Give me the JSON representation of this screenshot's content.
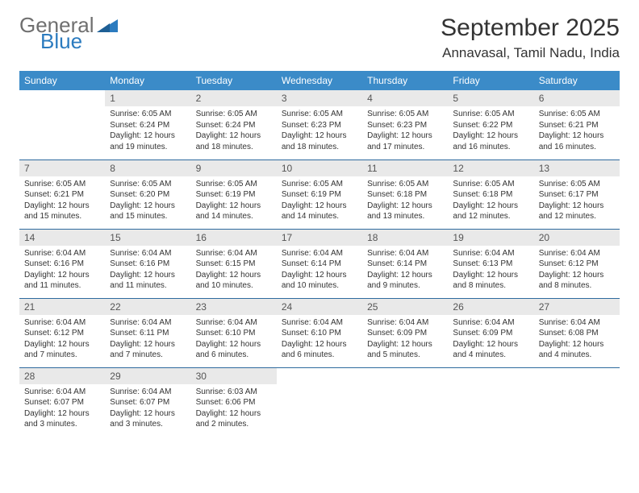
{
  "logo": {
    "text1": "General",
    "text2": "Blue",
    "color_general": "#6f6f6f",
    "color_blue": "#2b7bbf"
  },
  "title": "September 2025",
  "location": "Annavasal, Tamil Nadu, India",
  "colors": {
    "header_bg": "#3b8bc8",
    "header_text": "#ffffff",
    "daynum_bg": "#e9e9e9",
    "row_border": "#2e6a9e",
    "body_text": "#333333"
  },
  "day_headers": [
    "Sunday",
    "Monday",
    "Tuesday",
    "Wednesday",
    "Thursday",
    "Friday",
    "Saturday"
  ],
  "weeks": [
    [
      {
        "n": "",
        "sr": "",
        "ss": "",
        "dl": ""
      },
      {
        "n": "1",
        "sr": "Sunrise: 6:05 AM",
        "ss": "Sunset: 6:24 PM",
        "dl": "Daylight: 12 hours and 19 minutes."
      },
      {
        "n": "2",
        "sr": "Sunrise: 6:05 AM",
        "ss": "Sunset: 6:24 PM",
        "dl": "Daylight: 12 hours and 18 minutes."
      },
      {
        "n": "3",
        "sr": "Sunrise: 6:05 AM",
        "ss": "Sunset: 6:23 PM",
        "dl": "Daylight: 12 hours and 18 minutes."
      },
      {
        "n": "4",
        "sr": "Sunrise: 6:05 AM",
        "ss": "Sunset: 6:23 PM",
        "dl": "Daylight: 12 hours and 17 minutes."
      },
      {
        "n": "5",
        "sr": "Sunrise: 6:05 AM",
        "ss": "Sunset: 6:22 PM",
        "dl": "Daylight: 12 hours and 16 minutes."
      },
      {
        "n": "6",
        "sr": "Sunrise: 6:05 AM",
        "ss": "Sunset: 6:21 PM",
        "dl": "Daylight: 12 hours and 16 minutes."
      }
    ],
    [
      {
        "n": "7",
        "sr": "Sunrise: 6:05 AM",
        "ss": "Sunset: 6:21 PM",
        "dl": "Daylight: 12 hours and 15 minutes."
      },
      {
        "n": "8",
        "sr": "Sunrise: 6:05 AM",
        "ss": "Sunset: 6:20 PM",
        "dl": "Daylight: 12 hours and 15 minutes."
      },
      {
        "n": "9",
        "sr": "Sunrise: 6:05 AM",
        "ss": "Sunset: 6:19 PM",
        "dl": "Daylight: 12 hours and 14 minutes."
      },
      {
        "n": "10",
        "sr": "Sunrise: 6:05 AM",
        "ss": "Sunset: 6:19 PM",
        "dl": "Daylight: 12 hours and 14 minutes."
      },
      {
        "n": "11",
        "sr": "Sunrise: 6:05 AM",
        "ss": "Sunset: 6:18 PM",
        "dl": "Daylight: 12 hours and 13 minutes."
      },
      {
        "n": "12",
        "sr": "Sunrise: 6:05 AM",
        "ss": "Sunset: 6:18 PM",
        "dl": "Daylight: 12 hours and 12 minutes."
      },
      {
        "n": "13",
        "sr": "Sunrise: 6:05 AM",
        "ss": "Sunset: 6:17 PM",
        "dl": "Daylight: 12 hours and 12 minutes."
      }
    ],
    [
      {
        "n": "14",
        "sr": "Sunrise: 6:04 AM",
        "ss": "Sunset: 6:16 PM",
        "dl": "Daylight: 12 hours and 11 minutes."
      },
      {
        "n": "15",
        "sr": "Sunrise: 6:04 AM",
        "ss": "Sunset: 6:16 PM",
        "dl": "Daylight: 12 hours and 11 minutes."
      },
      {
        "n": "16",
        "sr": "Sunrise: 6:04 AM",
        "ss": "Sunset: 6:15 PM",
        "dl": "Daylight: 12 hours and 10 minutes."
      },
      {
        "n": "17",
        "sr": "Sunrise: 6:04 AM",
        "ss": "Sunset: 6:14 PM",
        "dl": "Daylight: 12 hours and 10 minutes."
      },
      {
        "n": "18",
        "sr": "Sunrise: 6:04 AM",
        "ss": "Sunset: 6:14 PM",
        "dl": "Daylight: 12 hours and 9 minutes."
      },
      {
        "n": "19",
        "sr": "Sunrise: 6:04 AM",
        "ss": "Sunset: 6:13 PM",
        "dl": "Daylight: 12 hours and 8 minutes."
      },
      {
        "n": "20",
        "sr": "Sunrise: 6:04 AM",
        "ss": "Sunset: 6:12 PM",
        "dl": "Daylight: 12 hours and 8 minutes."
      }
    ],
    [
      {
        "n": "21",
        "sr": "Sunrise: 6:04 AM",
        "ss": "Sunset: 6:12 PM",
        "dl": "Daylight: 12 hours and 7 minutes."
      },
      {
        "n": "22",
        "sr": "Sunrise: 6:04 AM",
        "ss": "Sunset: 6:11 PM",
        "dl": "Daylight: 12 hours and 7 minutes."
      },
      {
        "n": "23",
        "sr": "Sunrise: 6:04 AM",
        "ss": "Sunset: 6:10 PM",
        "dl": "Daylight: 12 hours and 6 minutes."
      },
      {
        "n": "24",
        "sr": "Sunrise: 6:04 AM",
        "ss": "Sunset: 6:10 PM",
        "dl": "Daylight: 12 hours and 6 minutes."
      },
      {
        "n": "25",
        "sr": "Sunrise: 6:04 AM",
        "ss": "Sunset: 6:09 PM",
        "dl": "Daylight: 12 hours and 5 minutes."
      },
      {
        "n": "26",
        "sr": "Sunrise: 6:04 AM",
        "ss": "Sunset: 6:09 PM",
        "dl": "Daylight: 12 hours and 4 minutes."
      },
      {
        "n": "27",
        "sr": "Sunrise: 6:04 AM",
        "ss": "Sunset: 6:08 PM",
        "dl": "Daylight: 12 hours and 4 minutes."
      }
    ],
    [
      {
        "n": "28",
        "sr": "Sunrise: 6:04 AM",
        "ss": "Sunset: 6:07 PM",
        "dl": "Daylight: 12 hours and 3 minutes."
      },
      {
        "n": "29",
        "sr": "Sunrise: 6:04 AM",
        "ss": "Sunset: 6:07 PM",
        "dl": "Daylight: 12 hours and 3 minutes."
      },
      {
        "n": "30",
        "sr": "Sunrise: 6:03 AM",
        "ss": "Sunset: 6:06 PM",
        "dl": "Daylight: 12 hours and 2 minutes."
      },
      {
        "n": "",
        "sr": "",
        "ss": "",
        "dl": ""
      },
      {
        "n": "",
        "sr": "",
        "ss": "",
        "dl": ""
      },
      {
        "n": "",
        "sr": "",
        "ss": "",
        "dl": ""
      },
      {
        "n": "",
        "sr": "",
        "ss": "",
        "dl": ""
      }
    ]
  ]
}
